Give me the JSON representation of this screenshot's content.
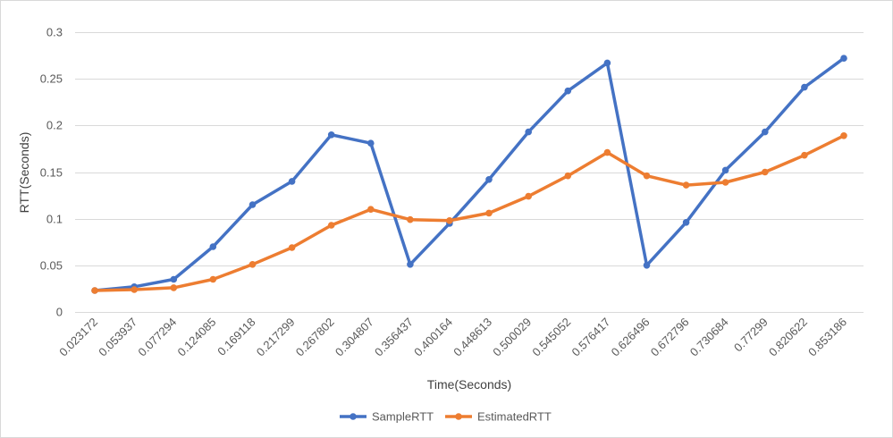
{
  "chart_data": {
    "type": "line",
    "title": "",
    "xlabel": "Time(Seconds)",
    "ylabel": "RTT(Seconds)",
    "ylim": [
      0,
      0.3
    ],
    "yticks": [
      "0",
      "0.05",
      "0.1",
      "0.15",
      "0.2",
      "0.25",
      "0.3"
    ],
    "grid": true,
    "legend_position": "bottom",
    "categories": [
      "0.023172",
      "0.053937",
      "0.077294",
      "0.124085",
      "0.169118",
      "0.217299",
      "0.267802",
      "0.304807",
      "0.356437",
      "0.400164",
      "0.448613",
      "0.500029",
      "0.545052",
      "0.576417",
      "0.626496",
      "0.672796",
      "0.730684",
      "0.77299",
      "0.820622",
      "0.853186"
    ],
    "series": [
      {
        "name": "SampleRTT",
        "color": "#4472C4",
        "values": [
          0.023,
          0.027,
          0.035,
          0.07,
          0.115,
          0.14,
          0.19,
          0.181,
          0.051,
          0.095,
          0.142,
          0.193,
          0.237,
          0.267,
          0.05,
          0.096,
          0.152,
          0.193,
          0.241,
          0.272
        ]
      },
      {
        "name": "EstimatedRTT",
        "color": "#ED7D31",
        "values": [
          0.023,
          0.024,
          0.026,
          0.035,
          0.051,
          0.069,
          0.093,
          0.11,
          0.099,
          0.098,
          0.106,
          0.124,
          0.146,
          0.171,
          0.146,
          0.136,
          0.139,
          0.15,
          0.168,
          0.189
        ]
      }
    ]
  }
}
